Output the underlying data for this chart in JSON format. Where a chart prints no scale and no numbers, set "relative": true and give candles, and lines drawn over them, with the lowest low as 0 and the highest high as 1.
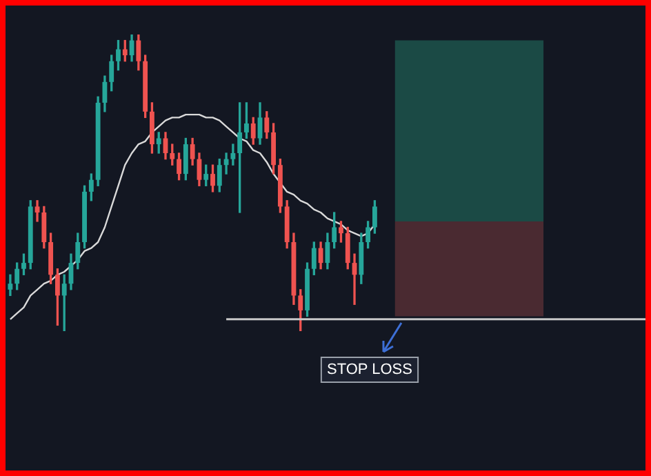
{
  "chart_data": {
    "type": "candlestick",
    "relative": true,
    "categories": [
      null,
      null,
      null,
      null,
      null,
      null,
      null,
      null,
      null,
      null,
      null,
      null,
      null,
      null,
      null,
      null,
      null,
      null,
      null,
      null,
      null,
      null,
      null,
      null,
      null,
      null,
      null,
      null,
      null,
      null,
      null,
      null,
      null,
      null,
      null,
      null,
      null,
      null,
      null,
      null,
      null,
      null,
      null,
      null,
      null,
      null,
      null,
      null,
      null,
      null,
      null,
      null,
      null,
      null,
      null,
      null,
      null,
      null,
      null,
      null,
      null,
      null,
      null,
      null,
      null,
      null,
      null,
      null,
      null,
      null,
      null,
      null,
      null,
      null,
      null,
      null,
      null,
      null,
      null,
      null,
      null,
      null,
      null,
      null,
      null,
      null,
      null,
      null,
      null,
      null,
      null,
      null,
      null,
      null
    ],
    "ohlc": [
      [
        0.14,
        0.19,
        0.12,
        0.16
      ],
      [
        0.16,
        0.23,
        0.14,
        0.21
      ],
      [
        0.21,
        0.26,
        0.19,
        0.23
      ],
      [
        0.23,
        0.44,
        0.21,
        0.42
      ],
      [
        0.42,
        0.44,
        0.37,
        0.4
      ],
      [
        0.4,
        0.42,
        0.28,
        0.3
      ],
      [
        0.3,
        0.33,
        0.16,
        0.19
      ],
      [
        0.19,
        0.21,
        0.02,
        0.12
      ],
      [
        0.12,
        0.19,
        0,
        0.16
      ],
      [
        0.16,
        0.26,
        0.14,
        0.23
      ],
      [
        0.23,
        0.33,
        0.21,
        0.3
      ],
      [
        0.3,
        0.49,
        0.28,
        0.47
      ],
      [
        0.47,
        0.53,
        0.44,
        0.51
      ],
      [
        0.51,
        0.79,
        0.49,
        0.77
      ],
      [
        0.77,
        0.86,
        0.74,
        0.84
      ],
      [
        0.84,
        0.93,
        0.81,
        0.91
      ],
      [
        0.91,
        0.98,
        0.88,
        0.95
      ],
      [
        0.95,
        0.98,
        0.91,
        0.93
      ],
      [
        0.93,
        1,
        0.91,
        0.98
      ],
      [
        0.98,
        1,
        0.88,
        0.91
      ],
      [
        0.91,
        0.93,
        0.72,
        0.74
      ],
      [
        0.74,
        0.77,
        0.6,
        0.63
      ],
      [
        0.63,
        0.67,
        0.6,
        0.65
      ],
      [
        0.65,
        0.67,
        0.58,
        0.6
      ],
      [
        0.6,
        0.63,
        0.56,
        0.58
      ],
      [
        0.58,
        0.6,
        0.51,
        0.53
      ],
      [
        0.53,
        0.65,
        0.51,
        0.63
      ],
      [
        0.63,
        0.65,
        0.56,
        0.58
      ],
      [
        0.58,
        0.6,
        0.49,
        0.51
      ],
      [
        0.51,
        0.56,
        0.49,
        0.53
      ],
      [
        0.53,
        0.56,
        0.47,
        0.49
      ],
      [
        0.49,
        0.58,
        0.47,
        0.56
      ],
      [
        0.56,
        0.6,
        0.53,
        0.58
      ],
      [
        0.58,
        0.63,
        0.56,
        0.6
      ],
      [
        0.6,
        0.77,
        0.4,
        0.67
      ],
      [
        0.67,
        0.77,
        0.65,
        0.7
      ],
      [
        0.7,
        0.72,
        0.63,
        0.65
      ],
      [
        0.65,
        0.77,
        0.63,
        0.72
      ],
      [
        0.72,
        0.74,
        0.65,
        0.67
      ],
      [
        0.67,
        0.7,
        0.53,
        0.56
      ],
      [
        0.56,
        0.58,
        0.4,
        0.42
      ],
      [
        0.42,
        0.44,
        0.28,
        0.3
      ],
      [
        0.3,
        0.33,
        0.09,
        0.12
      ],
      [
        0.12,
        0.14,
        0,
        0.07
      ],
      [
        0.07,
        0.23,
        0.05,
        0.21
      ],
      [
        0.21,
        0.3,
        0.19,
        0.28
      ],
      [
        0.28,
        0.3,
        0.21,
        0.23
      ],
      [
        0.23,
        0.33,
        0.21,
        0.3
      ],
      [
        0.3,
        0.4,
        0.28,
        0.35
      ],
      [
        0.35,
        0.37,
        0.3,
        0.33
      ],
      [
        0.33,
        0.35,
        0.21,
        0.23
      ],
      [
        0.23,
        0.26,
        0.09,
        0.19
      ],
      [
        0.19,
        0.33,
        0.16,
        0.3
      ],
      [
        0.3,
        0.37,
        0.28,
        0.35
      ],
      [
        0.35,
        0.44,
        0.33,
        0.42
      ],
      null,
      null,
      null,
      null,
      null,
      null,
      null,
      null,
      null,
      null,
      null,
      null,
      null,
      null,
      null,
      null,
      null,
      null,
      null,
      null,
      null,
      null,
      null,
      null,
      null,
      null,
      null,
      null,
      null,
      null,
      null,
      null,
      null,
      null,
      null,
      null,
      null,
      null,
      null
    ],
    "series": [
      {
        "type": "line",
        "color": "#d9d9d9",
        "values": [
          0.04,
          0.06,
          0.08,
          0.12,
          0.14,
          0.16,
          0.17,
          0.19,
          0.2,
          0.22,
          0.24,
          0.27,
          0.28,
          0.3,
          0.35,
          0.42,
          0.49,
          0.56,
          0.6,
          0.63,
          0.64,
          0.67,
          0.69,
          0.71,
          0.72,
          0.72,
          0.73,
          0.73,
          0.73,
          0.72,
          0.72,
          0.71,
          0.69,
          0.67,
          0.65,
          0.64,
          0.61,
          0.6,
          0.57,
          0.53,
          0.5,
          0.47,
          0.46,
          0.44,
          0.43,
          0.41,
          0.4,
          0.38,
          0.37,
          0.36,
          0.34,
          0.33,
          0.32,
          0.33,
          0.36,
          null,
          null,
          null,
          null,
          null,
          null,
          null,
          null,
          null,
          null,
          null,
          null,
          null,
          null,
          null,
          null,
          null,
          null,
          null,
          null,
          null,
          null,
          null,
          null,
          null,
          null,
          null,
          null,
          null,
          null,
          null,
          null,
          null,
          null,
          null,
          null,
          null,
          null,
          null
        ]
      }
    ],
    "ref_lines": [
      {
        "axis": "y",
        "value": 0.04,
        "color": "#c8c8c8"
      }
    ],
    "bands": [
      {
        "axis": "y",
        "from": 0.37,
        "to": 0.98,
        "color": "#1b4a45"
      },
      {
        "axis": "y",
        "from": 0.05,
        "to": 0.37,
        "color": "#4a2a31"
      }
    ],
    "annotations": [
      "STOP LOSS"
    ]
  }
}
